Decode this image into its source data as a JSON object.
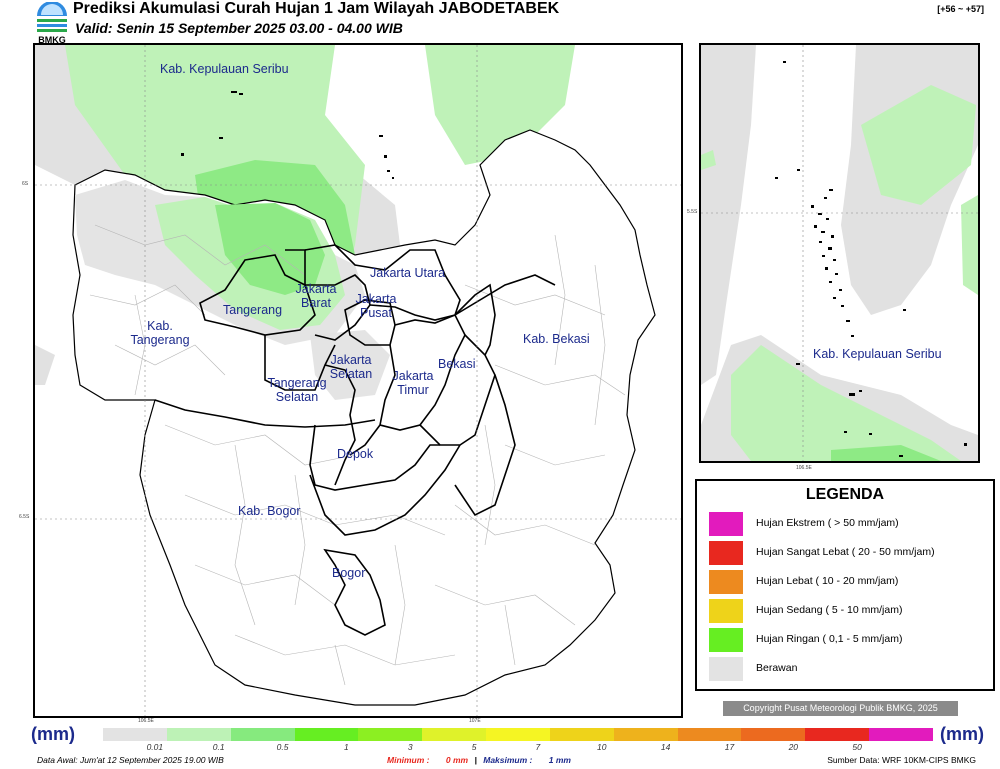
{
  "header": {
    "logo_text": "BMKG",
    "title": "Prediksi Akumulasi Curah Hujan 1 Jam Wilayah JABODETABEK",
    "subtitle": "Valid: Senin 15 September 2025 03.00 - 04.00 WIB",
    "range": "[+56 ~ +57]"
  },
  "main_map": {
    "regions": [
      {
        "id": "kepulauan-seribu",
        "label": "Kab. Kepulauan Seribu"
      },
      {
        "id": "jakarta-utara",
        "label": "Jakarta Utara"
      },
      {
        "id": "jakarta-barat",
        "label": "Jakarta Barat"
      },
      {
        "id": "jakarta-pusat",
        "label": "Jakarta Pusat"
      },
      {
        "id": "tangerang",
        "label": "Tangerang"
      },
      {
        "id": "kab-tangerang",
        "label": "Kab. Tangerang"
      },
      {
        "id": "jakarta-selatan",
        "label": "Jakarta Selatan"
      },
      {
        "id": "tangerang-selatan",
        "label": "Tangerang Selatan"
      },
      {
        "id": "jakarta-timur",
        "label": "Jakarta Timur"
      },
      {
        "id": "bekasi",
        "label": "Bekasi"
      },
      {
        "id": "kab-bekasi",
        "label": "Kab. Bekasi"
      },
      {
        "id": "depok",
        "label": "Depok"
      },
      {
        "id": "kab-bogor",
        "label": "Kab. Bogor"
      },
      {
        "id": "bogor",
        "label": "Bogor"
      }
    ],
    "coords": {
      "lat_top": "6S",
      "lat_bottom": "6.5S",
      "lon_left": "106.5E",
      "lon_right": "107E"
    }
  },
  "inset_map": {
    "label": "Kab. Kepulauan Seribu",
    "coords": {
      "lat": "5.5S",
      "lon": "106.5E"
    }
  },
  "legend": {
    "title": "LEGENDA",
    "items": [
      {
        "label": "Hujan Ekstrem ( > 50 mm/jam)",
        "color": "#e21bbd"
      },
      {
        "label": "Hujan Sangat Lebat ( 20 - 50 mm/jam)",
        "color": "#e8281f"
      },
      {
        "label": "Hujan Lebat ( 10 - 20 mm/jam)",
        "color": "#ed8a1f"
      },
      {
        "label": "Hujan Sedang ( 5 - 10 mm/jam)",
        "color": "#eed31a"
      },
      {
        "label": "Hujan Ringan ( 0,1 - 5 mm/jam)",
        "color": "#66ee22"
      },
      {
        "label": "Berawan",
        "color": "#e3e3e3"
      }
    ]
  },
  "copyright": "Copyright Pusat Meteorologi Publik BMKG, 2025",
  "colorbar": {
    "unit_left": "(mm)",
    "unit_right": "(mm)",
    "ticks": [
      "0.01",
      "0.1",
      "0.5",
      "1",
      "3",
      "5",
      "7",
      "10",
      "14",
      "17",
      "20",
      "50"
    ],
    "colors": [
      "#e3e3e3",
      "#bdf2b6",
      "#86ea7e",
      "#66ee22",
      "#8cef22",
      "#dff22a",
      "#f5f523",
      "#eed31a",
      "#eeb21c",
      "#ed8a1f",
      "#ec6a1f",
      "#e8281f",
      "#e21bbd"
    ]
  },
  "footer": {
    "data_awal": "Data Awal: Jum'at 12 September 2025 19.00 WIB",
    "minimum_label": "Minimum :",
    "minimum_value": "0 mm",
    "maximum_label": "Maksimum :",
    "maximum_value": "1 mm",
    "source": "Sumber Data: WRF 10KM-CIPS BMKG"
  }
}
